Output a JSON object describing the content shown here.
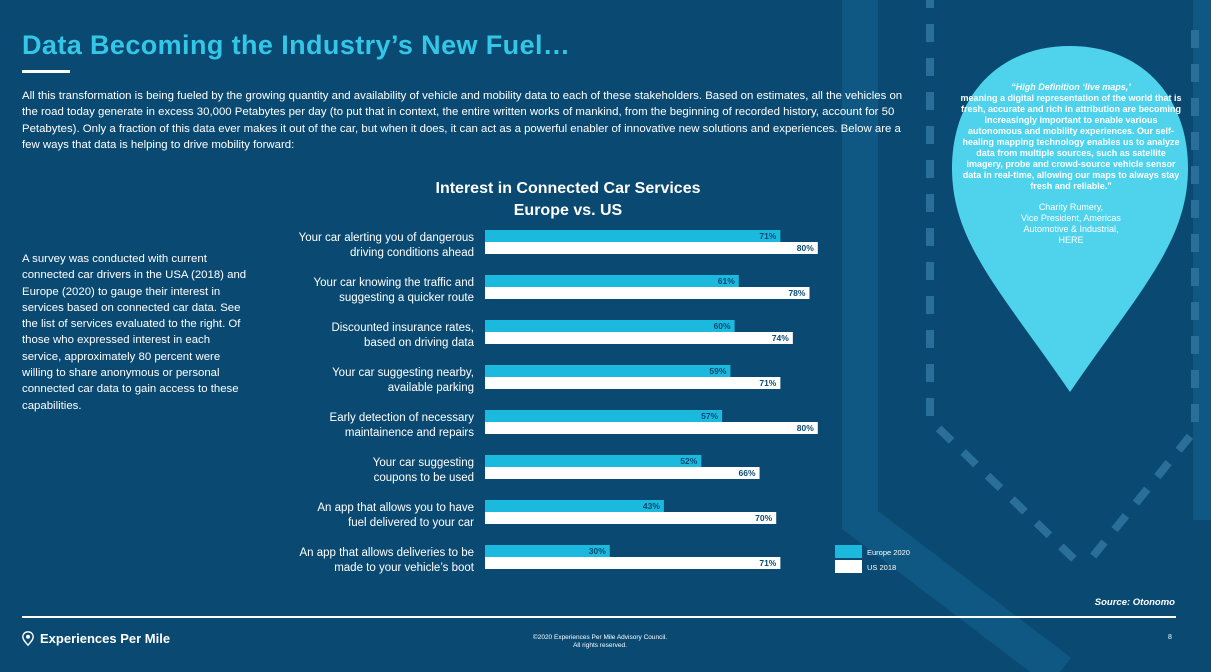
{
  "header": {
    "title": "Data Becoming the Industry’s New Fuel…"
  },
  "intro": "All this transformation is being fueled by the growing quantity and availability of vehicle and mobility data to each of these stakeholders. Based on estimates, all the vehicles on the road today generate in excess 30,000 Petabytes per day (to put that in context, the entire written works of mankind, from the beginning of recorded history, account for 50 Petabytes). Only a fraction of this data ever makes it out of the car, but when it does, it can act as a powerful enabler of innovative new solutions and experiences. Below are a few ways that data is helping to drive mobility forward:",
  "survey": "A survey was conducted with current connected car drivers in the USA (2018) and Europe (2020) to gauge their interest in services based on connected car data. See the list of services evaluated to the right. Of those who expressed interest in each service, approximately 80 percent were willing to share anonymous or personal connected car data to gain access to these capabilities.",
  "quote": {
    "open": "“High Definition ‘live maps,’",
    "rest": "meaning a digital representation of the world that is fresh, accurate and rich in attribution are becoming increasingly important to enable various autonomous and mobility experiences. Our self-healing mapping technology enables us to analyze data from multiple sources, such as satellite imagery, probe and crowd-source vehicle sensor data in real-time, allowing our maps to always stay fresh and reliable.”",
    "name": "Charity Rumery,",
    "role1": "Vice President, Americas",
    "role2": "Automotive & Industrial,",
    "org": "HERE"
  },
  "chart_data": {
    "type": "bar",
    "title": "Interest in Connected Car Services",
    "subtitle": "Europe vs. US",
    "categories": [
      [
        "Your car alerting you of dangerous",
        "driving conditions ahead"
      ],
      [
        "Your car knowing the traffic and",
        "suggesting a quicker route"
      ],
      [
        "Discounted insurance rates,",
        "based on driving data"
      ],
      [
        "Your car suggesting nearby,",
        "available parking"
      ],
      [
        "Early detection of necessary",
        "maintainence and repairs"
      ],
      [
        "Your car suggesting",
        "coupons to be used"
      ],
      [
        "An app that allows you to have",
        "fuel delivered to your car"
      ],
      [
        "An app that allows deliveries to be",
        "made to your vehicle’s boot"
      ]
    ],
    "series": [
      {
        "name": "Europe 2020",
        "color": "#1ab9dd",
        "values": [
          71,
          61,
          60,
          59,
          57,
          52,
          43,
          30
        ]
      },
      {
        "name": "US 2018",
        "color": "#ffffff",
        "values": [
          80,
          78,
          74,
          71,
          80,
          66,
          70,
          71
        ]
      }
    ],
    "value_suffix": "%",
    "xlim": [
      0,
      100
    ],
    "grid": false,
    "legend": "bottom-right"
  },
  "source": "Source: Otonomo",
  "footer": {
    "logo": "Experiences Per Mile",
    "copyright1": "©2020 Experiences Per Mile Advisory Council.",
    "copyright2": "All rights reserved.",
    "page": "8"
  },
  "colors": {
    "background": "#0a4a72",
    "accent": "#33c6e6",
    "europe_bar": "#1ab9dd",
    "us_bar": "#ffffff",
    "label_text": "#0a4a72"
  }
}
